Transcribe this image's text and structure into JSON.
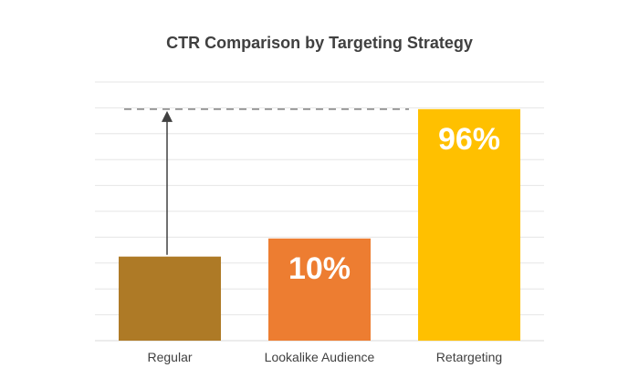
{
  "chart_data": {
    "type": "bar",
    "title": "CTR Comparison by Targeting Strategy",
    "categories": [
      "Regular",
      "Lookalike Audience",
      "Retargeting"
    ],
    "values": [
      6.5,
      7.9,
      17.9
    ],
    "data_labels": [
      "",
      "10%",
      "96%"
    ],
    "colors": [
      "#AE7A26",
      "#ED7D31",
      "#FFC000"
    ],
    "ylim": [
      0,
      20
    ],
    "grid": true,
    "legend": "none",
    "reference_line": 17.9,
    "arrow_from_category": "Regular"
  }
}
